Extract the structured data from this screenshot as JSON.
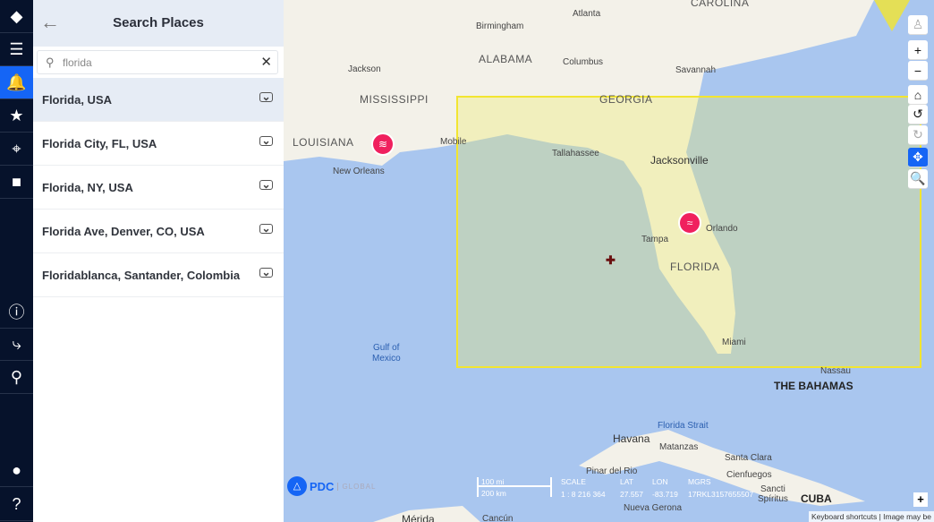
{
  "rail": {
    "top": [
      {
        "icon": "hazard-diamond-icon",
        "glyph": "◆"
      },
      {
        "icon": "layers-icon",
        "glyph": "☰"
      },
      {
        "icon": "bell-icon",
        "glyph": "🔔"
      },
      {
        "icon": "star-icon",
        "glyph": "★"
      },
      {
        "icon": "location-signal-icon",
        "glyph": "⌖"
      },
      {
        "icon": "video-camera-icon",
        "glyph": "■"
      }
    ],
    "bottom": [
      {
        "icon": "info-icon",
        "glyph": "ⓘ"
      },
      {
        "icon": "route-icon",
        "glyph": "⤷"
      },
      {
        "icon": "map-pin-icon",
        "glyph": "⚲"
      },
      {
        "icon": "user-icon",
        "glyph": "●"
      },
      {
        "icon": "help-icon",
        "glyph": "?"
      }
    ],
    "active_index": 2
  },
  "panel": {
    "title": "Search Places",
    "back_icon": "←",
    "search_value": "florida",
    "clear_icon": "✕",
    "search_icon": "⚲",
    "results": [
      {
        "label": "Florida, USA",
        "selected": true
      },
      {
        "label": "Florida City, FL, USA"
      },
      {
        "label": "Florida, NY, USA"
      },
      {
        "label": "Florida Ave, Denver, CO, USA"
      },
      {
        "label": "Floridablanca, Santander, Colombia"
      }
    ]
  },
  "map": {
    "labels": {
      "carolina": "CAROLINA",
      "atlanta": "Atlanta",
      "birmingham": "Birmingham",
      "alabama": "ALABAMA",
      "jackson": "Jackson",
      "columbus": "Columbus",
      "savannah": "Savannah",
      "mississippi": "MISSISSIPPI",
      "georgia": "GEORGIA",
      "louisiana": "LOUISIANA",
      "mobile": "Mobile",
      "tallahassee": "Tallahassee",
      "jacksonville": "Jacksonville",
      "neworleans": "New Orleans",
      "orlando": "Orlando",
      "tampa": "Tampa",
      "florida": "FLORIDA",
      "miami": "Miami",
      "gulf1": "Gulf of",
      "gulf2": "Mexico",
      "nassau": "Nassau",
      "bahamas": "THE BAHAMAS",
      "strait": "Florida Strait",
      "havana": "Havana",
      "matanzas": "Matanzas",
      "santaclara": "Santa Clara",
      "pinar": "Pinar del Rio",
      "cienfuegos": "Cienfuegos",
      "nueva": "Nueva Gerona",
      "sancti": "Sancti",
      "spiritus": "Spíritus",
      "cuba": "CUBA",
      "merida": "Mérida",
      "cancun": "Cancún"
    },
    "controls": [
      {
        "name": "street-view-button",
        "glyph": "♙"
      },
      {
        "name": "zoom-in-button",
        "glyph": "+"
      },
      {
        "name": "zoom-out-button",
        "glyph": "−"
      },
      {
        "name": "home-button",
        "glyph": "⌂"
      },
      {
        "name": "rotate-left-button",
        "glyph": "↺"
      },
      {
        "name": "rotate-right-button",
        "glyph": "↻"
      },
      {
        "name": "pan-button",
        "glyph": "✥",
        "active": true
      },
      {
        "name": "zoom-box-button",
        "glyph": "🔍"
      }
    ],
    "logo": {
      "brand": "PDC",
      "sub": "GLOBAL"
    },
    "scale": {
      "mi": "100 mi",
      "km": "200 km"
    },
    "readout": {
      "scale_label": "SCALE",
      "scale_value": "1 : 8 216 364",
      "lat_label": "LAT",
      "lat_value": "27.557",
      "lon_label": "LON",
      "lon_value": "-83.719",
      "mgrs_label": "MGRS",
      "mgrs_value": "17RKL3157655507"
    },
    "expand": "+",
    "attribution": "Keyboard shortcuts | Image may be"
  },
  "colors": {
    "rail": "#06122b",
    "accent": "#1565f5",
    "hazard": "#f0205e",
    "bbox": "#f2e530",
    "sea": "#a9c6ef",
    "land": "#f3f1e9"
  }
}
